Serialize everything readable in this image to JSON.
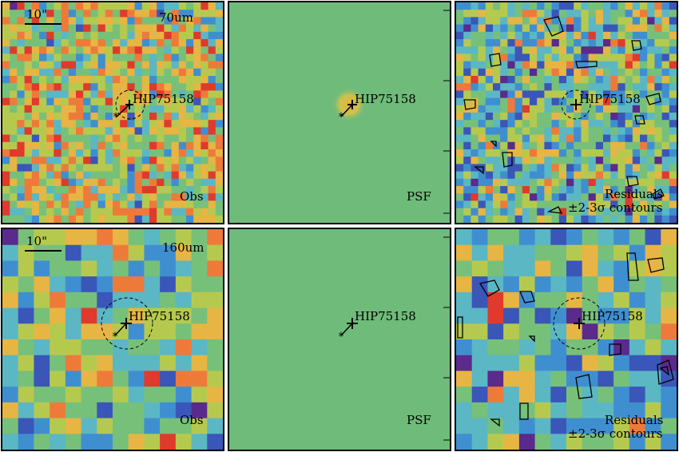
{
  "star_name": "HIP75158",
  "scale_bar_label": "10\"",
  "rows": [
    {
      "band": "70um",
      "obs_label": "Obs",
      "psf_label": "PSF",
      "residual_label_1": "Residuals",
      "residual_label_2": "±2-3σ contours"
    },
    {
      "band": "160um",
      "obs_label": "Obs",
      "psf_label": "PSF",
      "residual_label_1": "Residuals",
      "residual_label_2": "±2-3σ contours"
    }
  ],
  "psf_axis_ticks": [
    "20",
    "15",
    "10",
    "5"
  ],
  "colors": {
    "psf_background": "#6fbb7a",
    "psf_peak": "#e8b43c",
    "colormap": [
      "#5a2a8c",
      "#3a56b8",
      "#3f8fd0",
      "#5bb7c3",
      "#77c07a",
      "#b6c94f",
      "#e6b544",
      "#ee7a3a",
      "#e03a2c"
    ]
  }
}
